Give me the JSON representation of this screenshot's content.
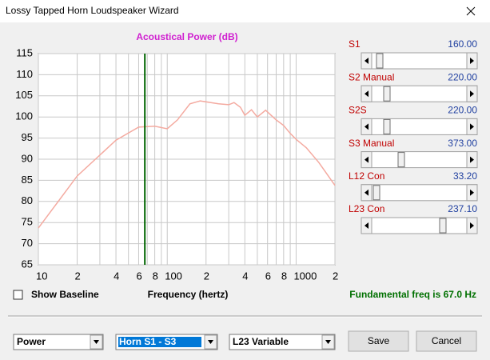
{
  "window": {
    "title": "Lossy Tapped Horn Loudspeaker Wizard"
  },
  "chart_data": {
    "type": "line",
    "title": "Acoustical Power (dB)",
    "x_label": "Frequency (hertz)",
    "x": [
      10,
      20,
      40,
      60,
      80,
      100,
      120,
      150,
      180,
      250,
      300,
      330,
      370,
      400,
      450,
      500,
      580,
      700,
      800,
      900,
      1000,
      1200,
      1500,
      2000
    ],
    "values": [
      73.7,
      86.0,
      94.5,
      97.6,
      97.8,
      97.2,
      99.3,
      103.1,
      103.8,
      103.1,
      102.9,
      103.4,
      102.3,
      100.4,
      101.7,
      100.0,
      101.6,
      99.3,
      98.0,
      96.1,
      94.7,
      92.7,
      89.2,
      83.8
    ],
    "color": "#f4aaa0",
    "log_x": true,
    "xlim": [
      10,
      2000
    ],
    "xticks": [
      10,
      {
        "value": 20,
        "label": "2"
      },
      {
        "value": 40,
        "label": "4"
      },
      {
        "value": 60,
        "label": "6"
      },
      {
        "value": 80,
        "label": "8"
      },
      100,
      {
        "value": 200,
        "label": "2"
      },
      {
        "value": 400,
        "label": "4"
      },
      {
        "value": 600,
        "label": "6"
      },
      {
        "value": 800,
        "label": "8"
      },
      1000,
      {
        "value": 2000,
        "label": "2"
      }
    ],
    "xminor_ticks": [
      30,
      50,
      70,
      90,
      300,
      500,
      700,
      900
    ],
    "ylim": [
      65,
      115
    ],
    "yticks": [
      65,
      70,
      75,
      80,
      85,
      90,
      95,
      100,
      105,
      110,
      115
    ],
    "grid": true,
    "marker": {
      "x": 67,
      "color": "#006400"
    }
  },
  "controls": {
    "show_baseline": "Show Baseline",
    "fundamental": "Fundamental freq is 67.0 Hz",
    "sliders": [
      {
        "label": "S1",
        "value": "160.00"
      },
      {
        "label": "S2 Manual",
        "value": "220.00"
      },
      {
        "label": "S2S",
        "value": "220.00"
      },
      {
        "label": "S3 Manual",
        "value": "373.00"
      },
      {
        "label": "L12 Con",
        "value": "33.20"
      },
      {
        "label": "L23 Con",
        "value": "237.10"
      }
    ],
    "dropdowns": [
      "Power",
      "Horn S1 - S3",
      "L23 Variable"
    ],
    "buttons": [
      "Save",
      "Cancel"
    ]
  }
}
